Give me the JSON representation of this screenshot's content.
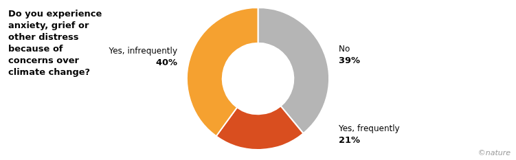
{
  "chart_data": {
    "type": "doughnut",
    "title": "Do you experience\nanxiety, grief or\nother distress\nbecause of\nconcerns over\nclimate change?",
    "categories": [
      "No",
      "Yes, frequently",
      "Yes, infrequently"
    ],
    "values": [
      39,
      21,
      40
    ],
    "value_labels": [
      "39%",
      "21%",
      "40%"
    ],
    "colors": [
      "#b5b5b5",
      "#d94e1f",
      "#f5a130"
    ],
    "data_labels": true,
    "annotations": [
      "©nature"
    ]
  }
}
